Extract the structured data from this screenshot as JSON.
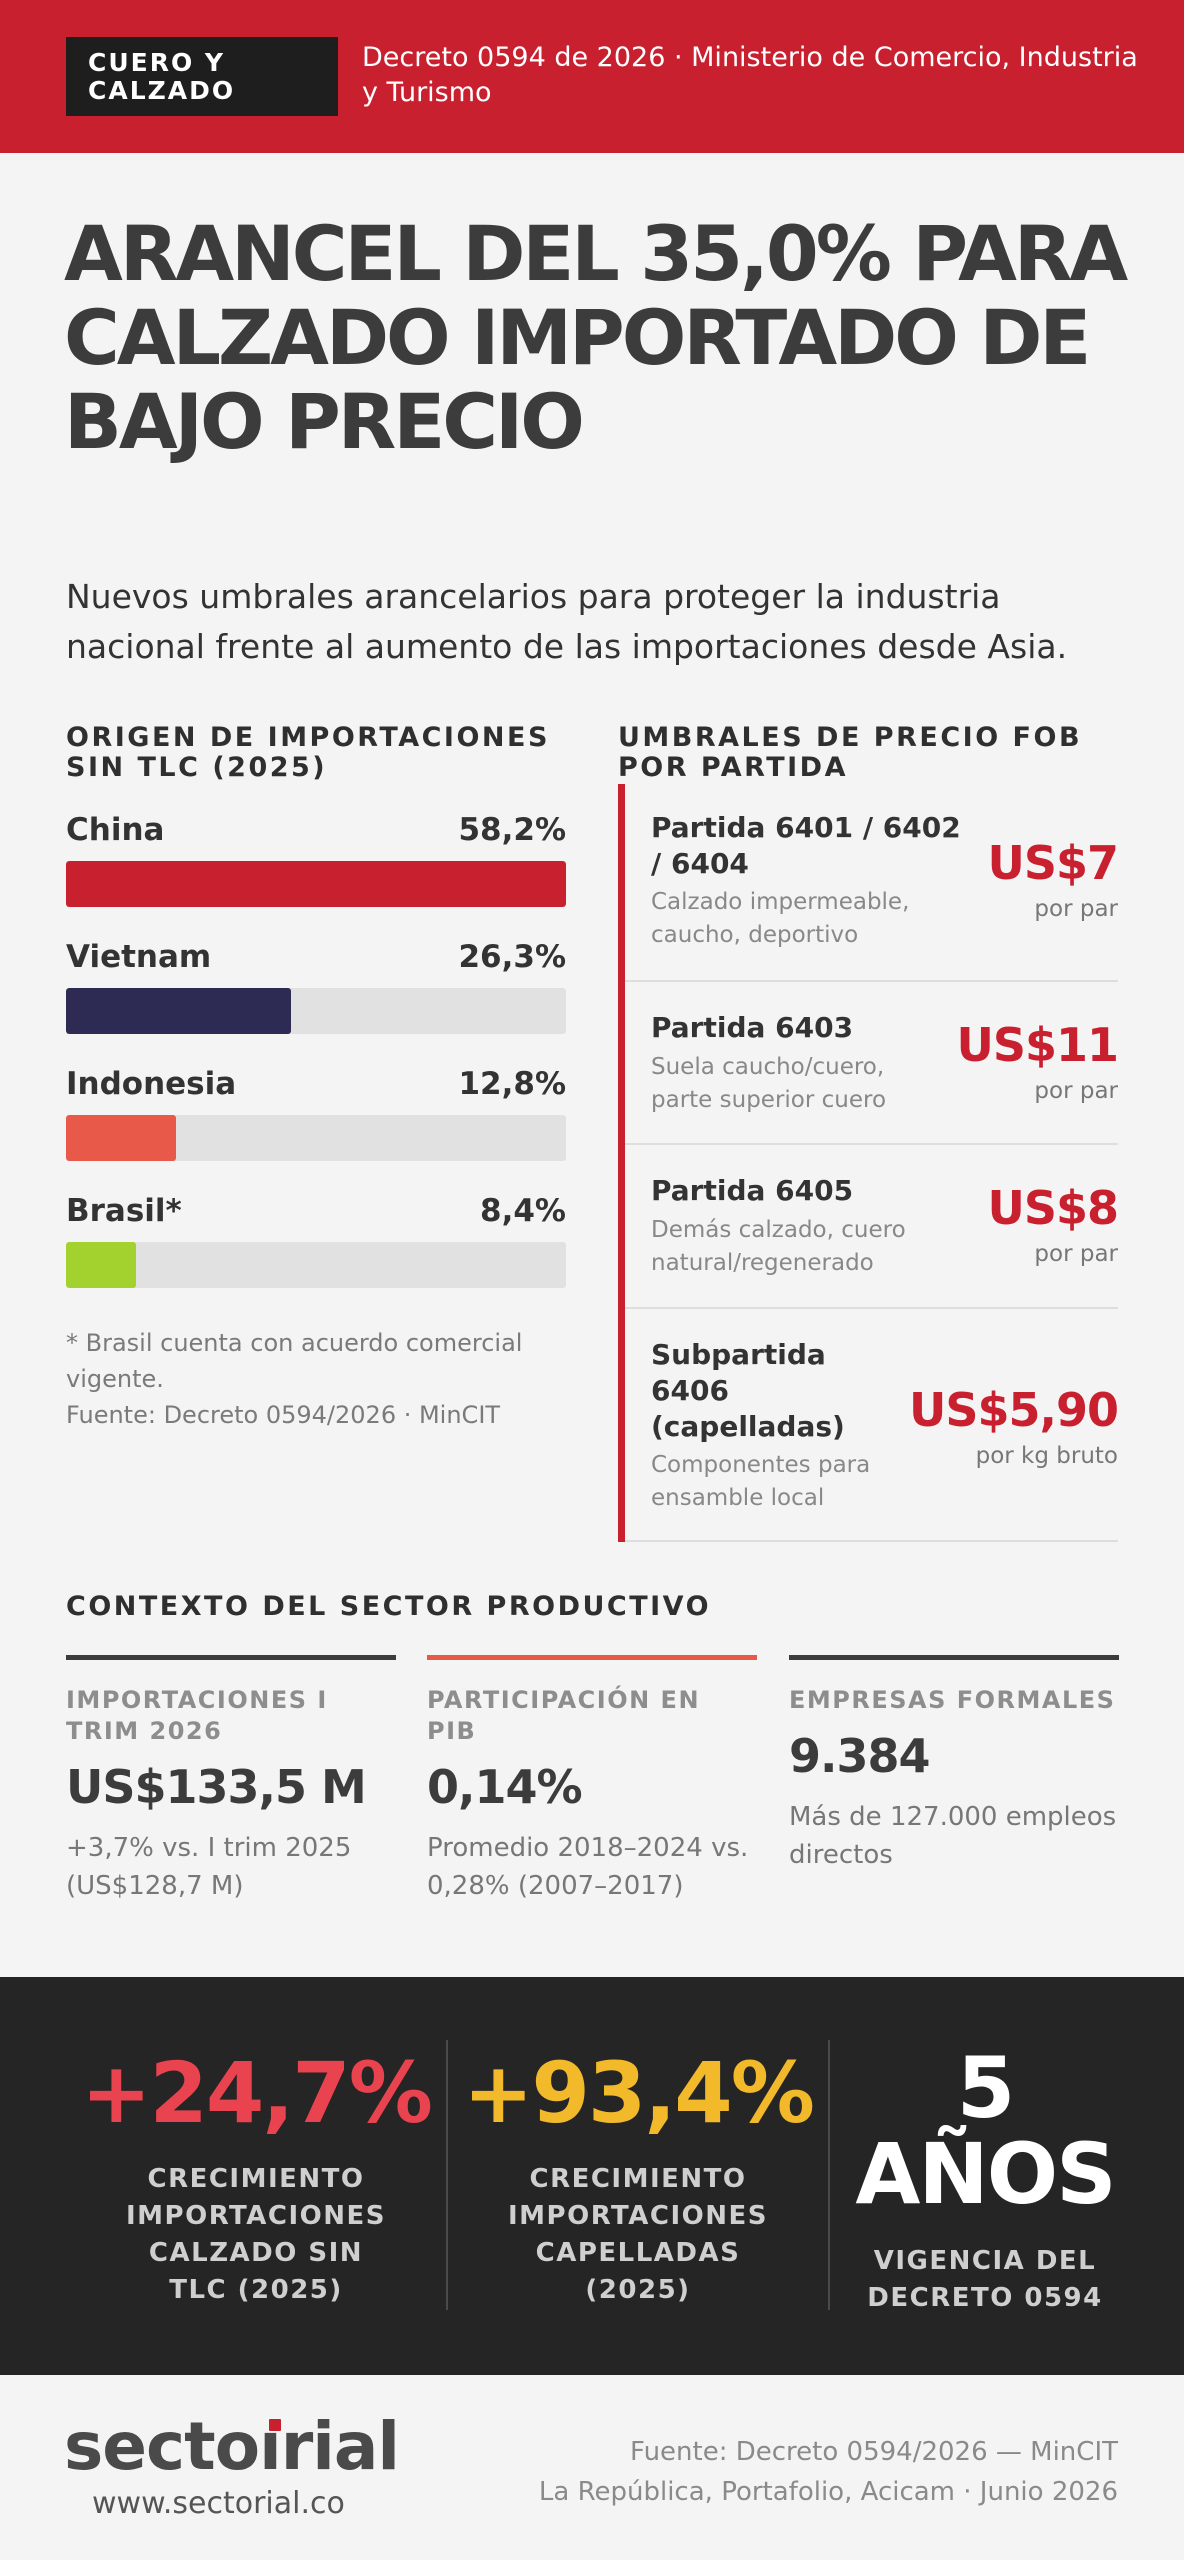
{
  "header": {
    "tag": "CUERO Y CALZADO",
    "decree": "Decreto 0594 de 2026 · Ministerio de Comercio, Industria y Turismo"
  },
  "title": "ARANCEL DEL 35,0% PARA CALZADO IMPORTADO DE BAJO PRECIO",
  "subtitle": "Nuevos umbrales arancelarios para proteger la industria nacional frente al aumento de las importaciones desde Asia.",
  "origins": {
    "heading": "ORIGEN DE IMPORTACIONES SIN TLC (2025)",
    "items": [
      {
        "label": "China",
        "value_text": "58,2%",
        "fill_pct": 100,
        "color": "#c8202f"
      },
      {
        "label": "Vietnam",
        "value_text": "26,3%",
        "fill_pct": 45,
        "color": "#2d2a53"
      },
      {
        "label": "Indonesia",
        "value_text": "12,8%",
        "fill_pct": 22,
        "color": "#e8594a"
      },
      {
        "label": "Brasil*",
        "value_text": "8,4%",
        "fill_pct": 14,
        "color": "#a3d12e"
      }
    ],
    "note": "* Brasil cuenta con acuerdo comercial vigente.",
    "source": "Fuente: Decreto 0594/2026 · MinCIT"
  },
  "thresholds": {
    "heading": "UMBRALES DE PRECIO FOB POR PARTIDA",
    "items": [
      {
        "code": "Partida 6401 / 6402 / 6404",
        "desc": "Calzado impermeable, caucho, deportivo",
        "price": "US$7",
        "unit": "por par"
      },
      {
        "code": "Partida 6403",
        "desc": "Suela caucho/cuero, parte superior cuero",
        "price": "US$11",
        "unit": "por par"
      },
      {
        "code": "Partida 6405",
        "desc": "Demás calzado, cuero natural/regenerado",
        "price": "US$8",
        "unit": "por par"
      },
      {
        "code": "Subpartida 6406 (capelladas)",
        "desc": "Componentes para ensamble local",
        "price": "US$5,90",
        "unit": "por kg bruto"
      }
    ]
  },
  "context": {
    "heading": "CONTEXTO DEL SECTOR PRODUCTIVO",
    "stats": [
      {
        "label": "IMPORTACIONES I TRIM 2026",
        "value": "US$133,5 M",
        "desc": "+3,7% vs. I trim 2025 (US$128,7 M)",
        "color": "#3c3c3c"
      },
      {
        "label": "PARTICIPACIÓN EN PIB",
        "value": "0,14%",
        "desc": "Promedio 2018–2024 vs. 0,28% (2007–2017)",
        "color": "#e8594a"
      },
      {
        "label": "EMPRESAS FORMALES",
        "value": "9.384",
        "desc": "Más de 127.000 empleos directos",
        "color": "#3c3c3c"
      }
    ]
  },
  "kpis": [
    {
      "value": "+24,7%",
      "caption": "CRECIMIENTO IMPORTACIONES CALZADO SIN TLC (2025)",
      "color": "#e8434f"
    },
    {
      "value": "+93,4%",
      "caption": "CRECIMIENTO IMPORTACIONES CAPELLADAS (2025)",
      "color": "#f2b92b"
    },
    {
      "value_line1": "5",
      "value_line2": "AÑOS",
      "caption": "VIGENCIA DEL DECRETO 0594",
      "color": "#ffffff"
    }
  ],
  "footer": {
    "logo_a": "secto",
    "logo_i": "ı",
    "logo_b": "rial",
    "url": "www.sectorial.co",
    "source_line1": "Fuente: Decreto 0594/2026 — MinCIT",
    "source_line2": "La República, Portafolio, Acicam · Junio 2026"
  }
}
